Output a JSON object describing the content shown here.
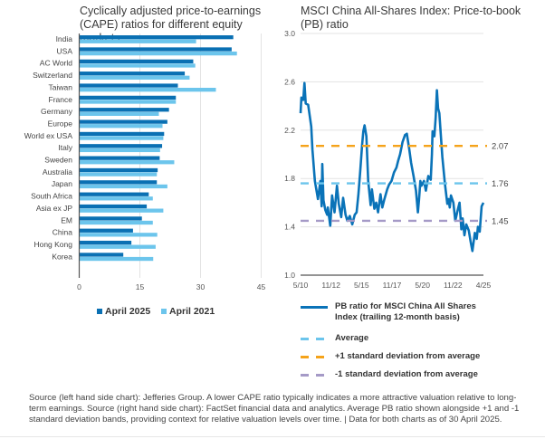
{
  "left_chart_title": "Cyclically adjusted price-to-earnings (CAPE) ratios for different equity markets",
  "right_chart_title": "MSCI China All-Shares Index: Price-to-book (PB) ratio",
  "colors": {
    "april_2025": "#0a70b3",
    "april_2021": "#6cc5ec",
    "pb_line": "#0a73b8",
    "average": "#6cc5ec",
    "plus1sd": "#f5a31a",
    "minus1sd": "#a59ac7",
    "grid": "#e3e3e3",
    "axis": "#555555"
  },
  "legend_left": [
    {
      "label": "April 2025",
      "color_key": "april_2025"
    },
    {
      "label": "April 2021",
      "color_key": "april_2021"
    }
  ],
  "legend_right": [
    {
      "label": "PB ratio for MSCI China All Shares Index (trailing 12-month basis)",
      "style": "solid",
      "color_key": "pb_line"
    },
    {
      "label": "Average",
      "style": "dashed",
      "color_key": "average"
    },
    {
      "label": "+1 standard deviation from average",
      "style": "dashed",
      "color_key": "plus1sd"
    },
    {
      "label": "-1 standard deviation from average",
      "style": "dashed",
      "color_key": "minus1sd"
    }
  ],
  "footnote": "Source (left hand side chart): Jefferies Group. A lower CAPE ratio typically indicates a more attractive valuation relative to long-term earnings. Source (right hand side chart): FactSet financial data and analytics. Average PB ratio shown alongside +1 and -1 standard deviation bands, providing context for relative valuation levels over time.  |  Data for both charts as of 30 April 2025.",
  "chart_data": [
    {
      "type": "bar",
      "orientation": "horizontal",
      "title": "Cyclically adjusted price-to-earnings (CAPE) ratios for different equity markets",
      "xlabel": "",
      "ylabel": "",
      "xlim": [
        0,
        45
      ],
      "xticks": [
        0,
        15,
        30,
        45
      ],
      "grid": true,
      "legend": "bottom",
      "categories": [
        "India",
        "USA",
        "AC World",
        "Switzerland",
        "Taiwan",
        "France",
        "Germany",
        "Europe",
        "World ex USA",
        "Italy",
        "Sweden",
        "Australia",
        "Japan",
        "South Africa",
        "Asia ex JP",
        "EM",
        "China",
        "Hong Kong",
        "Korea"
      ],
      "series": [
        {
          "name": "April 2025",
          "values": [
            38.1,
            37.7,
            28.2,
            26.1,
            24.4,
            23.9,
            22.2,
            21.8,
            21.0,
            20.5,
            19.9,
            19.4,
            19.2,
            17.2,
            16.7,
            15.5,
            13.3,
            12.9,
            10.9
          ]
        },
        {
          "name": "April 2021",
          "values": [
            28.9,
            39.0,
            28.7,
            27.3,
            33.8,
            23.9,
            19.7,
            20.6,
            20.8,
            20.0,
            23.5,
            19.2,
            21.8,
            18.2,
            20.8,
            18.2,
            19.3,
            18.9,
            18.3
          ]
        }
      ]
    },
    {
      "type": "line",
      "title": "MSCI China All-Shares Index: Price-to-book (PB) ratio",
      "xlabel": "",
      "ylabel": "",
      "ylim": [
        1.0,
        3.0
      ],
      "yticks": [
        "1.0",
        "1.4",
        "1.8",
        "2.2",
        "2.6",
        "3.0"
      ],
      "xticks": [
        "5/10",
        "11/12",
        "5/15",
        "11/17",
        "5/20",
        "11/22",
        "4/25"
      ],
      "xrange_years": [
        2010.33,
        2025.25
      ],
      "grid": true,
      "legend": "bottom",
      "reference_lines": [
        {
          "name": "+1 standard deviation from average",
          "value": 2.07,
          "label": "2.07",
          "color_key": "plus1sd"
        },
        {
          "name": "Average",
          "value": 1.76,
          "label": "1.76",
          "color_key": "average"
        },
        {
          "name": "-1 standard deviation from average",
          "value": 1.45,
          "label": "1.45",
          "color_key": "minus1sd"
        }
      ],
      "series": [
        {
          "name": "PB ratio for MSCI China All Shares Index (trailing 12-month basis)",
          "x": [
            2010.33,
            2010.4,
            2010.55,
            2010.65,
            2010.75,
            2010.95,
            2011.2,
            2011.3,
            2011.5,
            2011.75,
            2011.95,
            2012.05,
            2012.1,
            2012.2,
            2012.35,
            2012.5,
            2012.55,
            2012.75,
            2012.9,
            2013.1,
            2013.3,
            2013.45,
            2013.65,
            2013.8,
            2014.0,
            2014.15,
            2014.35,
            2014.55,
            2014.75,
            2014.9,
            2015.05,
            2015.2,
            2015.35,
            2015.45,
            2015.55,
            2015.7,
            2015.85,
            2016.05,
            2016.15,
            2016.35,
            2016.5,
            2016.65,
            2016.85,
            2017.0,
            2017.15,
            2017.4,
            2017.55,
            2017.75,
            2017.95,
            2018.15,
            2018.3,
            2018.45,
            2018.65,
            2018.85,
            2019.0,
            2019.2,
            2019.35,
            2019.55,
            2019.75,
            2019.9,
            2020.0,
            2020.1,
            2020.2,
            2020.4,
            2020.55,
            2020.75,
            2020.95,
            2021.05,
            2021.1,
            2021.25,
            2021.35,
            2021.45,
            2021.55,
            2021.65,
            2021.8,
            2021.9,
            2022.0,
            2022.1,
            2022.3,
            2022.4,
            2022.5,
            2022.6,
            2022.8,
            2022.95,
            2023.15,
            2023.3,
            2023.45,
            2023.55,
            2023.7,
            2023.85,
            2024.05,
            2024.2,
            2024.35,
            2024.55,
            2024.7,
            2024.8,
            2024.95,
            2025.1,
            2025.25
          ],
          "values": [
            2.34,
            2.47,
            2.45,
            2.59,
            2.42,
            2.41,
            2.23,
            2.04,
            1.78,
            1.63,
            1.78,
            1.57,
            1.92,
            1.62,
            1.54,
            1.5,
            1.56,
            1.41,
            1.66,
            1.52,
            1.74,
            1.59,
            1.48,
            1.64,
            1.5,
            1.45,
            1.49,
            1.42,
            1.5,
            1.52,
            1.67,
            1.86,
            2.08,
            2.19,
            2.24,
            2.15,
            1.78,
            1.58,
            1.71,
            1.55,
            1.6,
            1.52,
            1.67,
            1.56,
            1.62,
            1.71,
            1.75,
            1.78,
            1.85,
            1.89,
            1.95,
            2.0,
            2.1,
            2.16,
            2.17,
            2.04,
            1.93,
            1.82,
            1.7,
            1.52,
            1.63,
            1.78,
            1.74,
            1.78,
            1.7,
            1.82,
            1.79,
            2.0,
            2.19,
            2.15,
            2.3,
            2.53,
            2.38,
            2.34,
            2.12,
            1.98,
            1.87,
            1.76,
            1.59,
            1.63,
            1.56,
            1.66,
            1.6,
            1.45,
            1.54,
            1.6,
            1.38,
            1.47,
            1.33,
            1.42,
            1.37,
            1.28,
            1.2,
            1.35,
            1.3,
            1.4,
            1.36,
            1.57,
            1.6
          ]
        }
      ]
    }
  ]
}
